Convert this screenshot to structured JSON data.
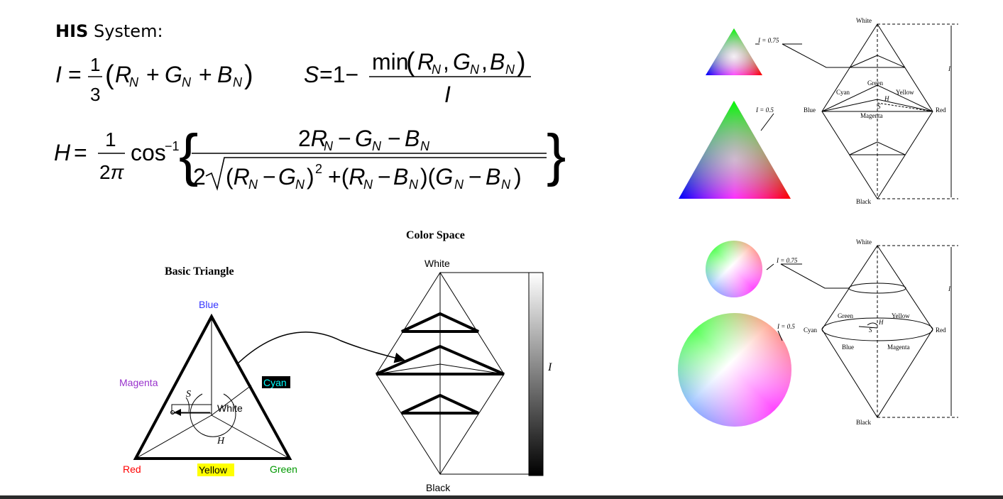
{
  "heading": {
    "bold": "HIS",
    "rest": "System:"
  },
  "formulas": {
    "intensity": "I = 1/3 (R_N + G_N + B_N)",
    "saturation": "S = 1 - min(R_N, G_N, B_N) / I",
    "hue": "H = 1/(2π) cos^-1 { (2R_N - G_N - B_N) / (2 sqrt((R_N - G_N)^2 + (R_N - B_N)(G_N - B_N))) }"
  },
  "basic_triangle": {
    "title": "Basic Triangle",
    "blue": "Blue",
    "magenta": "Magenta",
    "cyan": "Cyan",
    "white": "White",
    "red": "Red",
    "yellow": "Yellow",
    "green": "Green",
    "s": "S",
    "h": "H"
  },
  "color_space": {
    "title": "Color Space",
    "white": "White",
    "black": "Black",
    "i": "I"
  },
  "hexcone_triangle": {
    "white": "White",
    "black": "Black",
    "blue": "Blue",
    "red": "Red",
    "green": "Green",
    "cyan": "Cyan",
    "yellow": "Yellow",
    "magenta": "Magenta",
    "label_075": "I = 0.75",
    "label_05": "I = 0.5",
    "i": "I",
    "h": "H",
    "s": "S"
  },
  "hexcone_circle": {
    "white": "White",
    "black": "Black",
    "green": "Green",
    "yellow": "Yellow",
    "cyan": "Cyan",
    "red": "Red",
    "blue": "Blue",
    "magenta": "Magenta",
    "label_075": "I = 0.75",
    "label_05": "I = 0.5",
    "i": "I",
    "h": "H",
    "s": "S"
  },
  "colors": {
    "blue_label": "#3333ff",
    "magenta_label": "#9933cc",
    "cyan_bg": "#000000",
    "cyan_text": "#00ffff",
    "red_label": "#ff0000",
    "yellow_bg": "#ffff00",
    "green_label": "#009900"
  }
}
